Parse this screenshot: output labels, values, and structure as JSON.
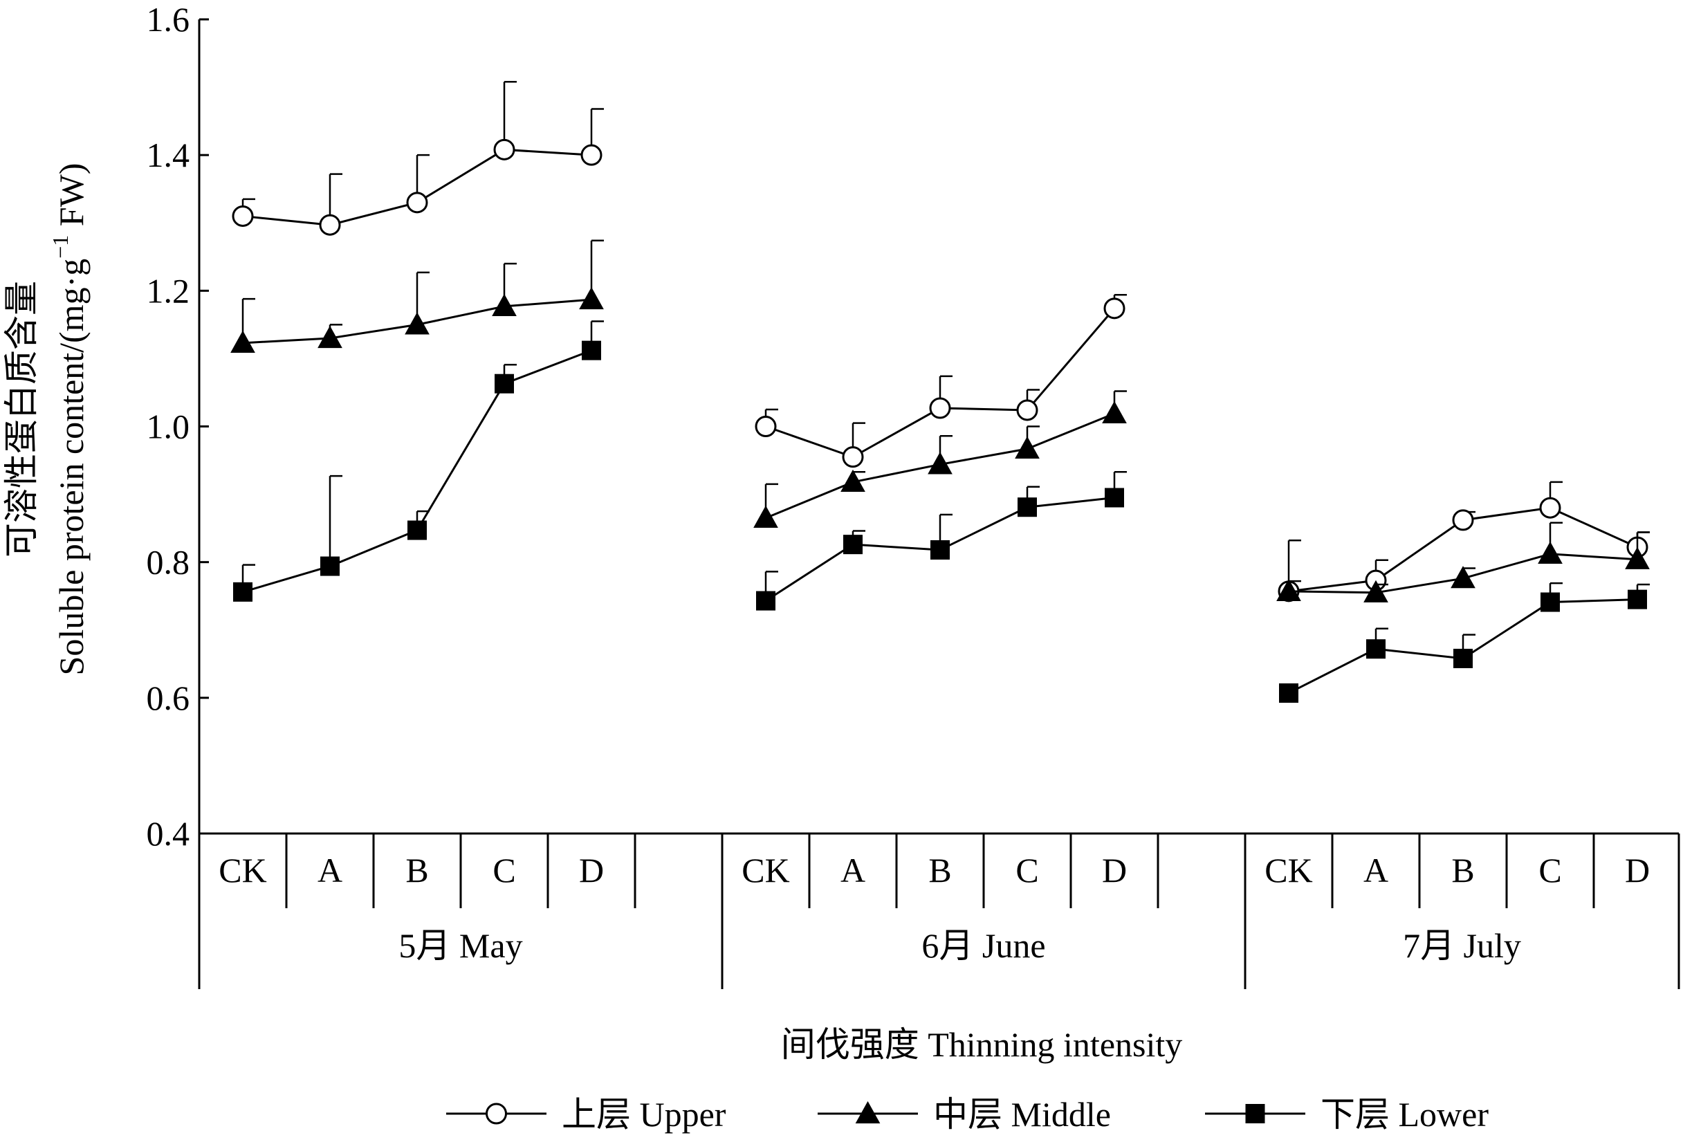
{
  "chart_data": {
    "type": "line",
    "xlabel": "间伐强度  Thinning  intensity",
    "ylabel_cn": "可溶性蛋白质含量",
    "ylabel_en_main": "Soluble protein content/(mg·g",
    "ylabel_en_sup": "−1",
    "ylabel_en_tail": " FW)",
    "ylim": [
      0.4,
      1.6
    ],
    "yticks": [
      "0.4",
      "0.6",
      "0.8",
      "1.0",
      "1.2",
      "1.4",
      "1.6"
    ],
    "grid": false,
    "legend_position": "bottom",
    "groups": [
      {
        "label": "5月  May",
        "categories": [
          "CK",
          "A",
          "B",
          "C",
          "D"
        ]
      },
      {
        "label": "6月  June",
        "categories": [
          "CK",
          "A",
          "B",
          "C",
          "D"
        ]
      },
      {
        "label": "7月  July",
        "categories": [
          "CK",
          "A",
          "B",
          "C",
          "D"
        ]
      }
    ],
    "series": [
      {
        "name": "上层  Upper",
        "marker": "circle-open",
        "values": [
          [
            1.31,
            1.297,
            1.33,
            1.408,
            1.4
          ],
          [
            1.0,
            0.955,
            1.027,
            1.024,
            1.174
          ],
          [
            0.757,
            0.773,
            0.862,
            0.88,
            0.822
          ]
        ],
        "errors": [
          [
            0.025,
            0.075,
            0.07,
            0.1,
            0.068
          ],
          [
            0.025,
            0.05,
            0.047,
            0.03,
            0.02
          ],
          [
            0.075,
            0.03,
            0.012,
            0.038,
            0.022
          ]
        ]
      },
      {
        "name": "中层  Middle",
        "marker": "triangle-filled",
        "values": [
          [
            1.123,
            1.13,
            1.15,
            1.177,
            1.187
          ],
          [
            0.865,
            0.918,
            0.944,
            0.967,
            1.019
          ],
          [
            0.757,
            0.755,
            0.776,
            0.812,
            0.804
          ]
        ],
        "errors": [
          [
            0.065,
            0.02,
            0.077,
            0.063,
            0.087
          ],
          [
            0.05,
            0.015,
            0.042,
            0.033,
            0.033
          ],
          [
            0.015,
            0.012,
            0.015,
            0.046,
            0.04
          ]
        ]
      },
      {
        "name": "下层  Lower",
        "marker": "square-filled",
        "values": [
          [
            0.756,
            0.794,
            0.847,
            1.063,
            1.112
          ],
          [
            0.743,
            0.826,
            0.818,
            0.881,
            0.895
          ],
          [
            0.607,
            0.672,
            0.658,
            0.741,
            0.745
          ]
        ],
        "errors": [
          [
            0.04,
            0.133,
            0.028,
            0.028,
            0.043
          ],
          [
            0.043,
            0.02,
            0.052,
            0.03,
            0.038
          ],
          [
            0.0,
            0.03,
            0.035,
            0.028,
            0.022
          ]
        ]
      }
    ]
  }
}
